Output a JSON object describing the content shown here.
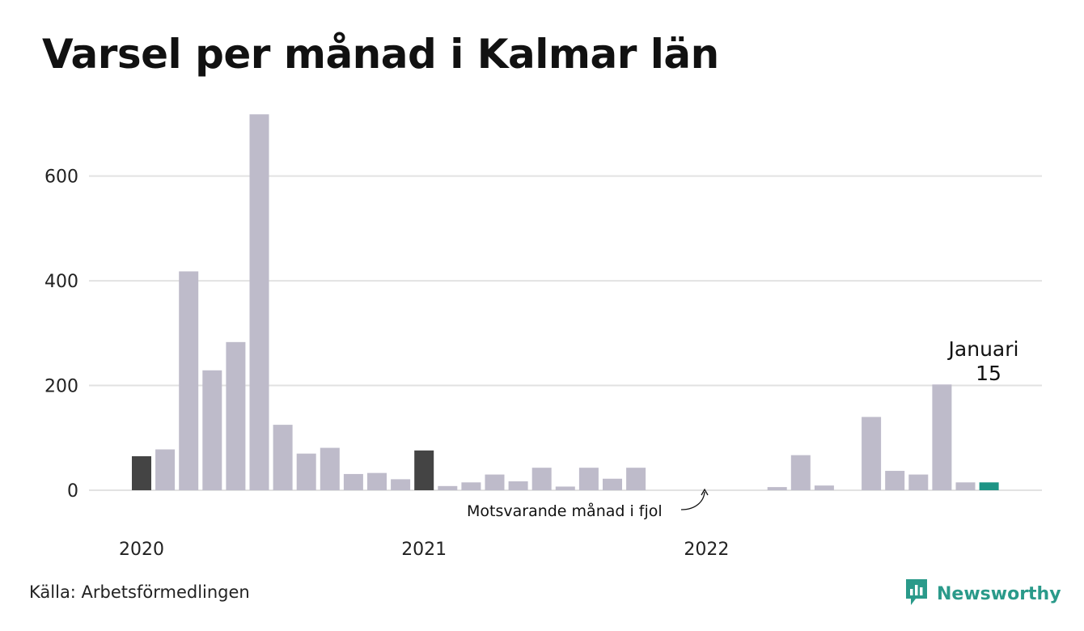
{
  "chart_data": {
    "type": "bar",
    "title": "Varsel per månad i Kalmar län",
    "xlabel": "",
    "ylabel": "",
    "ylim": [
      0,
      720
    ],
    "yticks": [
      0,
      200,
      400,
      600
    ],
    "grid": true,
    "x_tick_labels": [
      {
        "label": "2020",
        "index": 0
      },
      {
        "label": "2021",
        "index": 12
      },
      {
        "label": "2022",
        "index": 24
      }
    ],
    "categories": [
      "2020-01",
      "2020-02",
      "2020-03",
      "2020-04",
      "2020-05",
      "2020-06",
      "2020-07",
      "2020-08",
      "2020-09",
      "2020-10",
      "2020-11",
      "2020-12",
      "2021-01",
      "2021-02",
      "2021-03",
      "2021-04",
      "2021-05",
      "2021-06",
      "2021-07",
      "2021-08",
      "2021-09",
      "2021-10",
      "2021-11",
      "2021-12",
      "2022-01",
      "2022-02",
      "2022-03",
      "2022-04",
      "2022-05",
      "2022-06",
      "2022-07",
      "2022-08",
      "2022-09",
      "2022-10",
      "2022-11",
      "2022-12",
      "2023-01"
    ],
    "values": [
      65,
      78,
      418,
      229,
      283,
      718,
      125,
      70,
      81,
      31,
      33,
      21,
      76,
      8,
      15,
      30,
      17,
      43,
      7,
      43,
      22,
      43,
      0,
      0,
      0,
      0,
      0,
      6,
      67,
      9,
      0,
      140,
      37,
      30,
      202,
      15,
      15
    ],
    "bar_kinds": [
      "same_month_prev_year",
      "regular",
      "regular",
      "regular",
      "regular",
      "regular",
      "regular",
      "regular",
      "regular",
      "regular",
      "regular",
      "regular",
      "same_month_prev_year",
      "regular",
      "regular",
      "regular",
      "regular",
      "regular",
      "regular",
      "regular",
      "regular",
      "regular",
      "regular",
      "regular",
      "regular",
      "regular",
      "regular",
      "regular",
      "regular",
      "regular",
      "regular",
      "regular",
      "regular",
      "regular",
      "regular",
      "regular",
      "current"
    ],
    "annotations": {
      "comparison_note": "Motsvarande månad i fjol",
      "highlight_month": "Januari",
      "highlight_value": "15"
    },
    "colors": {
      "regular": "#bebbca",
      "same_month_prev_year": "#444444",
      "current": "#1d9485",
      "grid": "#e2e2e2"
    }
  },
  "footer": {
    "source": "Källa: Arbetsförmedlingen",
    "brand": "Newsworthy"
  },
  "icons": {
    "brand_logo": "newsworthy-logo-icon"
  }
}
